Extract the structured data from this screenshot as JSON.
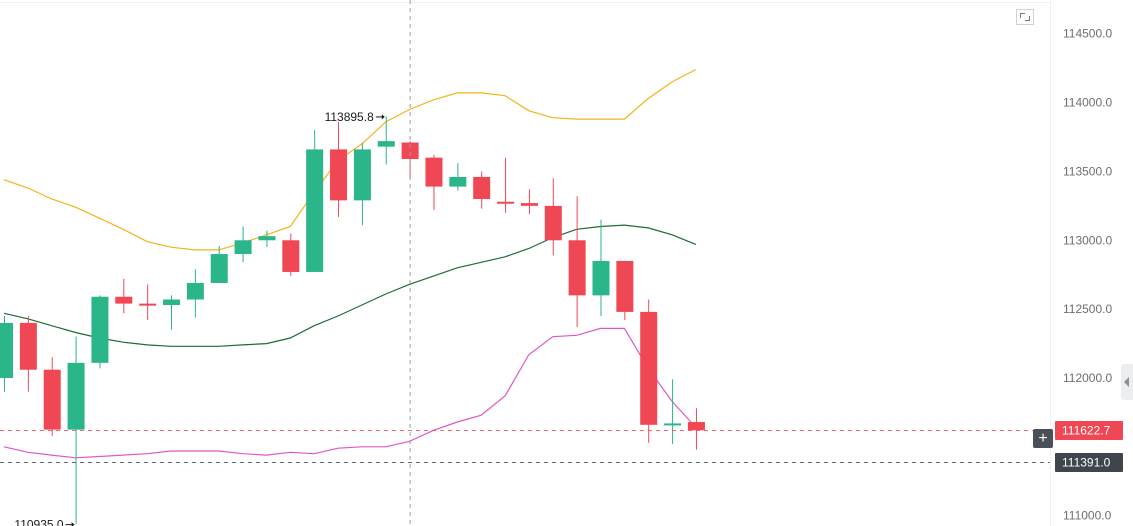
{
  "chart_data": {
    "type": "candlestick",
    "y_axis_labels": [
      "114500.0",
      "114000.0",
      "113500.0",
      "113000.0",
      "112500.0",
      "112000.0",
      "111000.0"
    ],
    "y_axis_ticks": [
      114500,
      114000,
      113500,
      113000,
      112500,
      112000,
      111000
    ],
    "ylim": [
      110925,
      114745
    ],
    "colors": {
      "up": "#2bb58b",
      "down": "#ef4753",
      "upper_band": "#f2b41c",
      "middle_band": "#1f6b3a",
      "lower_band": "#df58c6"
    },
    "candles": [
      {
        "o": 112000,
        "h": 112450,
        "l": 111900,
        "c": 112400
      },
      {
        "o": 112400,
        "h": 112450,
        "l": 111900,
        "c": 112060
      },
      {
        "o": 112060,
        "h": 112150,
        "l": 111580,
        "c": 111625
      },
      {
        "o": 111625,
        "h": 112300,
        "l": 110940,
        "c": 112110
      },
      {
        "o": 112110,
        "h": 112600,
        "l": 112070,
        "c": 112590
      },
      {
        "o": 112590,
        "h": 112720,
        "l": 112470,
        "c": 112540
      },
      {
        "o": 112540,
        "h": 112680,
        "l": 112420,
        "c": 112530
      },
      {
        "o": 112530,
        "h": 112600,
        "l": 112350,
        "c": 112570
      },
      {
        "o": 112570,
        "h": 112790,
        "l": 112440,
        "c": 112690
      },
      {
        "o": 112690,
        "h": 112960,
        "l": 112690,
        "c": 112900
      },
      {
        "o": 112900,
        "h": 113100,
        "l": 112840,
        "c": 113000
      },
      {
        "o": 113000,
        "h": 113070,
        "l": 112950,
        "c": 113030
      },
      {
        "o": 113000,
        "h": 113050,
        "l": 112740,
        "c": 112770
      },
      {
        "o": 112770,
        "h": 113800,
        "l": 112770,
        "c": 113660
      },
      {
        "o": 113660,
        "h": 113860,
        "l": 113170,
        "c": 113290
      },
      {
        "o": 113290,
        "h": 113710,
        "l": 113110,
        "c": 113660
      },
      {
        "o": 113680,
        "h": 113900,
        "l": 113550,
        "c": 113720
      },
      {
        "o": 113710,
        "h": 113720,
        "l": 113450,
        "c": 113590
      },
      {
        "o": 113600,
        "h": 113620,
        "l": 113220,
        "c": 113390
      },
      {
        "o": 113390,
        "h": 113560,
        "l": 113360,
        "c": 113460
      },
      {
        "o": 113460,
        "h": 113500,
        "l": 113230,
        "c": 113300
      },
      {
        "o": 113280,
        "h": 113600,
        "l": 113200,
        "c": 113270
      },
      {
        "o": 113270,
        "h": 113370,
        "l": 113190,
        "c": 113250
      },
      {
        "o": 113250,
        "h": 113450,
        "l": 112890,
        "c": 113000
      },
      {
        "o": 113000,
        "h": 113320,
        "l": 112370,
        "c": 112600
      },
      {
        "o": 112600,
        "h": 113150,
        "l": 112450,
        "c": 112850
      },
      {
        "o": 112850,
        "h": 112850,
        "l": 112420,
        "c": 112480
      },
      {
        "o": 112480,
        "h": 112570,
        "l": 111530,
        "c": 111660
      },
      {
        "o": 111660,
        "h": 111990,
        "l": 111520,
        "c": 111670
      },
      {
        "o": 111680,
        "h": 111780,
        "l": 111480,
        "c": 111620
      }
    ],
    "upper_band": [
      113440,
      113380,
      113300,
      113240,
      113160,
      113080,
      112990,
      112950,
      112930,
      112930,
      112980,
      113040,
      113100,
      113350,
      113580,
      113700,
      113860,
      113950,
      114020,
      114070,
      114070,
      114050,
      113940,
      113890,
      113880,
      113880,
      113880,
      114030,
      114150,
      114240
    ],
    "middle_band": [
      112470,
      112430,
      112380,
      112330,
      112290,
      112260,
      112240,
      112230,
      112230,
      112230,
      112240,
      112250,
      112290,
      112380,
      112450,
      112530,
      112610,
      112680,
      112740,
      112800,
      112840,
      112880,
      112940,
      113020,
      113080,
      113100,
      113110,
      113090,
      113040,
      112970
    ],
    "lower_band": [
      111500,
      111460,
      111440,
      111420,
      111430,
      111440,
      111450,
      111470,
      111470,
      111470,
      111450,
      111440,
      111460,
      111450,
      111490,
      111500,
      111500,
      111540,
      111620,
      111680,
      111730,
      111870,
      112170,
      112300,
      112310,
      112360,
      112360,
      112070,
      111830,
      111640
    ],
    "annotations": [
      {
        "text": "113895.8",
        "candle": 16,
        "value": 113895.8,
        "side": "left"
      },
      {
        "text": "110935.0",
        "candle": 3,
        "value": 110935.0,
        "side": "left"
      }
    ],
    "price_markers": [
      {
        "text": "111622.7",
        "value": 111622.7,
        "color": "#ef4753"
      },
      {
        "text": "111391.0",
        "value": 111391.0,
        "color": "#3f454c"
      }
    ],
    "crosshair_candle": 17,
    "grid": false
  }
}
